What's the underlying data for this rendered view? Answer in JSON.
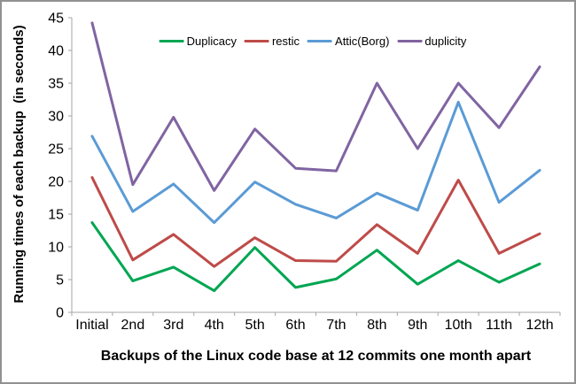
{
  "chart_data": {
    "type": "line",
    "title": "",
    "xlabel": "Backups of the Linux code base at 12 commits one month apart",
    "ylabel": "Running times of each backup  (in seconds)",
    "categories": [
      "Initial",
      "2nd",
      "3rd",
      "4th",
      "5th",
      "6th",
      "7th",
      "8th",
      "9th",
      "10th",
      "11th",
      "12th"
    ],
    "yticks": [
      0,
      5,
      10,
      15,
      20,
      25,
      30,
      35,
      40,
      45
    ],
    "ylim": [
      0,
      45
    ],
    "grid": false,
    "legend_position": "top",
    "series": [
      {
        "name": "Duplicacy",
        "color": "#00A651",
        "values": [
          13.7,
          4.8,
          6.9,
          3.3,
          9.9,
          3.8,
          5.1,
          9.5,
          4.3,
          7.9,
          4.6,
          7.4
        ]
      },
      {
        "name": "restic",
        "color": "#BE4B48",
        "values": [
          20.6,
          8.0,
          11.9,
          7.0,
          11.4,
          7.9,
          7.8,
          13.4,
          9.0,
          20.2,
          9.0,
          12.0
        ]
      },
      {
        "name": "Attic(Borg)",
        "color": "#5B9BD5",
        "values": [
          26.9,
          15.4,
          19.6,
          13.7,
          19.9,
          16.5,
          14.4,
          18.2,
          15.6,
          32.1,
          16.8,
          21.7
        ]
      },
      {
        "name": "duplicity",
        "color": "#8064A2",
        "values": [
          44.2,
          19.5,
          29.8,
          18.6,
          28.0,
          22.0,
          21.6,
          35.0,
          25.0,
          35.0,
          28.2,
          37.5
        ]
      }
    ],
    "colors": {
      "axis": "#A6A6A6",
      "tick_text": "#000000",
      "border": "#919191"
    }
  }
}
